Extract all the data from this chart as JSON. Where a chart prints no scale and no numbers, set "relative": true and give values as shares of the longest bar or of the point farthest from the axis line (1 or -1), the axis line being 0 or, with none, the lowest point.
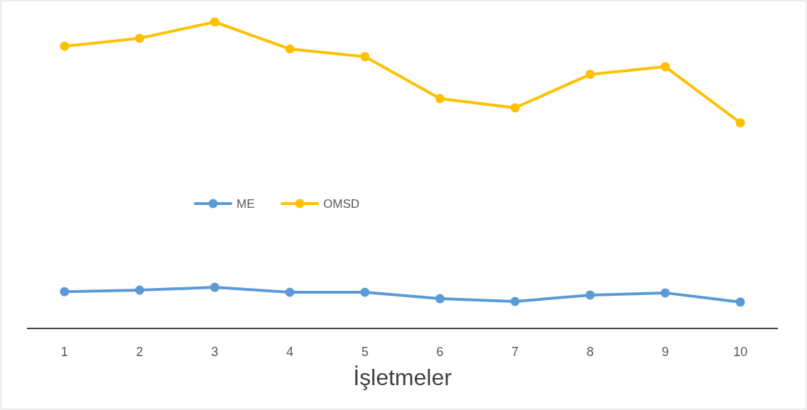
{
  "chart_data": {
    "type": "line",
    "xlabel": "İşletmeler",
    "categories": [
      "1",
      "2",
      "3",
      "4",
      "5",
      "6",
      "7",
      "8",
      "9",
      "10"
    ],
    "relative": true,
    "marker": "circle",
    "line_style": "solid",
    "legend": "center",
    "series": [
      {
        "name": "ME",
        "color": "#5b9bd5",
        "values": [
          0.12,
          0.125,
          0.134,
          0.118,
          0.118,
          0.097,
          0.088,
          0.109,
          0.116,
          0.086
        ]
      },
      {
        "name": "OMSD",
        "color": "#ffc000",
        "values": [
          0.921,
          0.947,
          1,
          0.912,
          0.887,
          0.75,
          0.72,
          0.829,
          0.854,
          0.671
        ]
      }
    ]
  }
}
